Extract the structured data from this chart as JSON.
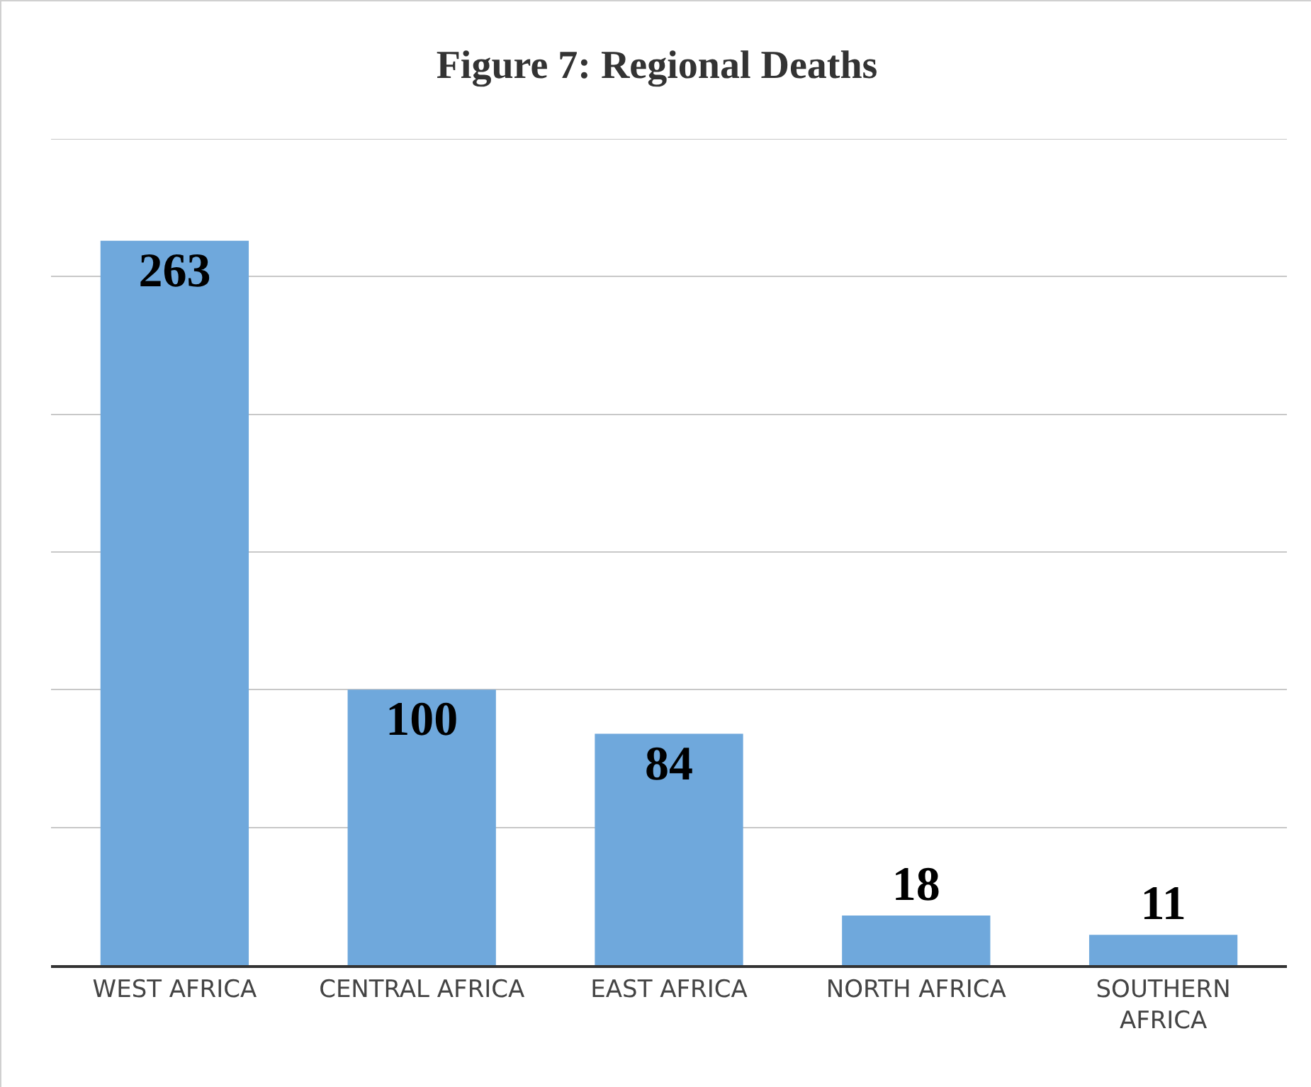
{
  "chart_data": {
    "type": "bar",
    "title": "Figure 7: Regional Deaths",
    "categories": [
      "WEST AFRICA",
      "CENTRAL AFRICA",
      "EAST AFRICA",
      "NORTH AFRICA",
      "SOUTHERN AFRICA"
    ],
    "values": [
      263,
      100,
      84,
      18,
      11
    ],
    "color": "#6fa8dc",
    "ylim": [
      0,
      300
    ],
    "yticks": [
      {
        "value": 0,
        "label": null
      },
      {
        "value": 50,
        "label": null
      },
      {
        "value": 100,
        "label": null
      },
      {
        "value": 150,
        "label": null
      },
      {
        "value": 200,
        "label": null
      },
      {
        "value": 250,
        "label": null
      },
      {
        "value": 300,
        "label": null
      }
    ],
    "grid": "y",
    "data_labels": true,
    "tick_labels": "x"
  }
}
